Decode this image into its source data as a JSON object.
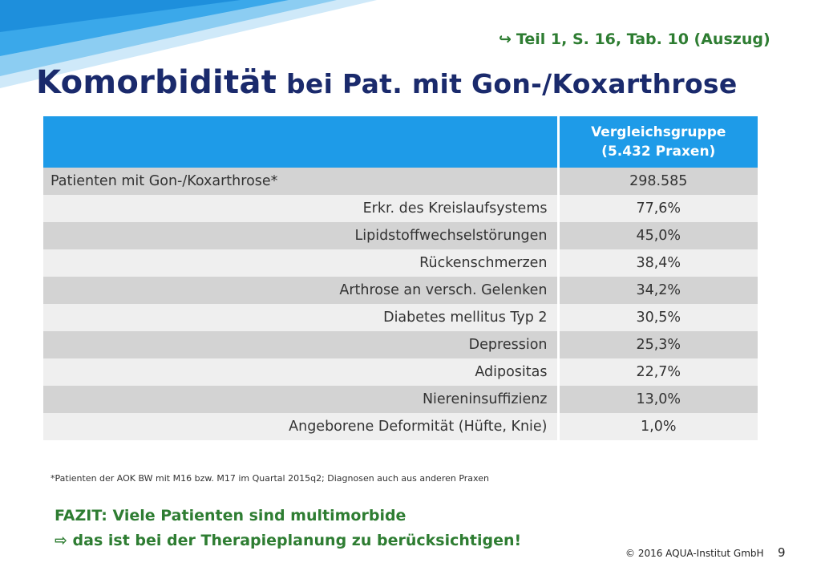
{
  "header": {
    "source_ref": "Teil 1, S. 16, Tab. 10 (Auszug)",
    "source_ref_icon": "curved-arrow-right-icon",
    "title_part1": "Komorbidität",
    "title_part2": " bei Pat. mit Gon-/Koxarthrose"
  },
  "table": {
    "header_line1": "Vergleichsgruppe",
    "header_line2": "(5.432 Praxen)",
    "rows": [
      {
        "label": "Patienten mit Gon-/Koxarthrose*",
        "value": "298.585"
      },
      {
        "label": "Erkr. des Kreislaufsystems",
        "value": "77,6%"
      },
      {
        "label": "Lipidstoffwechselstörungen",
        "value": "45,0%"
      },
      {
        "label": "Rückenschmerzen",
        "value": "38,4%"
      },
      {
        "label": "Arthrose an versch. Gelenken",
        "value": "34,2%"
      },
      {
        "label": "Diabetes mellitus Typ 2",
        "value": "30,5%"
      },
      {
        "label": "Depression",
        "value": "25,3%"
      },
      {
        "label": "Adipositas",
        "value": "22,7%"
      },
      {
        "label": "Niereninsuffizienz",
        "value": "13,0%"
      },
      {
        "label": "Angeborene Deformität (Hüfte, Knie)",
        "value": "1,0%"
      }
    ]
  },
  "footnote": "*Patienten der AOK BW mit M16 bzw. M17 im Quartal 2015q2; Diagnosen auch aus anderen Praxen",
  "fazit": {
    "line1": "FAZIT: Viele Patienten sind multimorbide",
    "line2": "das ist bei der Therapieplanung zu berücksichtigen!",
    "line2_icon": "hollow-arrow-right-icon"
  },
  "footer": {
    "copyright": "© 2016 AQUA-Institut GmbH",
    "page_number": "9"
  },
  "colors": {
    "header_blue": "#1e9be8",
    "title_navy": "#1a2a6c",
    "accent_green": "#2e7d32",
    "row_dark": "#d3d3d3",
    "row_light": "#efefef"
  }
}
